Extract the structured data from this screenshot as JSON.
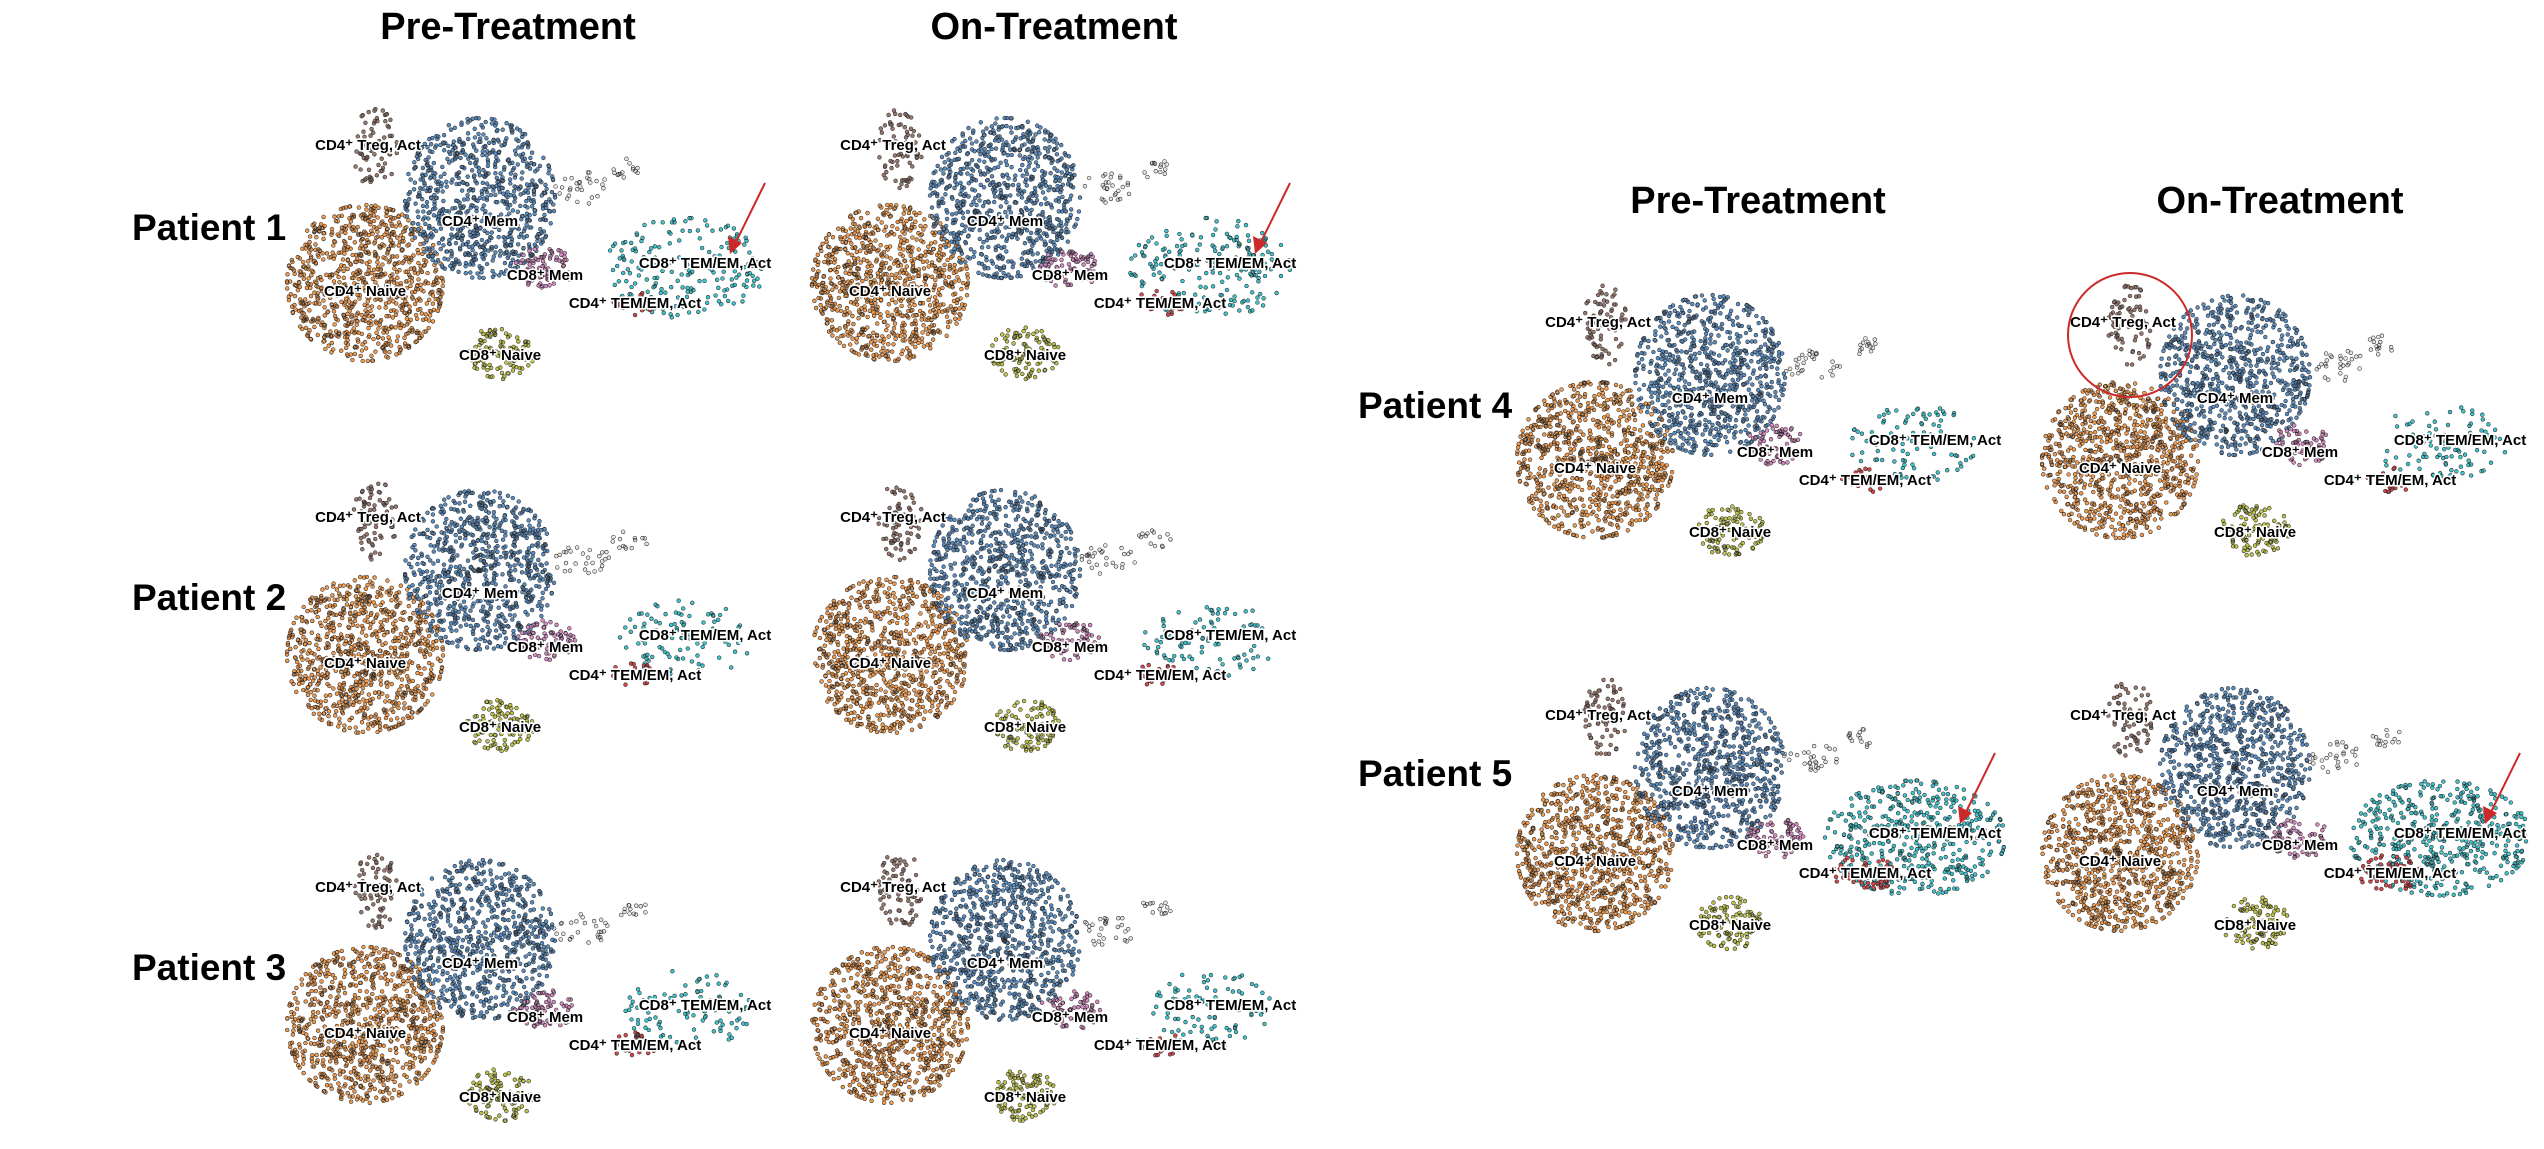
{
  "left_block": {
    "columns": [
      "Pre-Treatment",
      "On-Treatment"
    ],
    "patients": [
      "Patient 1",
      "Patient 2",
      "Patient 3"
    ]
  },
  "right_block": {
    "columns": [
      "Pre-Treatment",
      "On-Treatment"
    ],
    "patients": [
      "Patient 4",
      "Patient 5"
    ]
  },
  "cluster_labels": {
    "cd4_treg_act": "CD4⁺ Treg, Act",
    "cd4_mem": "CD4⁺ Mem",
    "cd4_naive": "CD4⁺ Naive",
    "cd8_mem": "CD8⁺ Mem",
    "cd8_naive": "CD8⁺ Naive",
    "cd8_temem_act": "CD8⁺ TEM/EM, Act",
    "cd4_temem_act": "CD4⁺ TEM/EM, Act"
  },
  "colors": {
    "cd4_naive": "#f39c4e",
    "cd4_mem": "#5b8fc4",
    "cd4_treg_act": "#9a7a6e",
    "cd8_mem": "#d98cc4",
    "cd8_naive": "#bfc24a",
    "cd8_temem_act": "#3ec6cf",
    "cd4_temem_act": "#d9474a",
    "other": "#e6e6e6",
    "annotation": "#cc2a2a"
  },
  "chart_data": {
    "type": "scatter",
    "description_of_plot": "UMAP embeddings of T-cell clusters per patient, pre- and on-treatment",
    "panels": [
      {
        "patient": "Patient 1",
        "timepoint": "Pre-Treatment",
        "cd8_temem_act_abundance": "medium",
        "cd4_temem_act_abundance": "low",
        "annotation": "arrow"
      },
      {
        "patient": "Patient 1",
        "timepoint": "On-Treatment",
        "cd8_temem_act_abundance": "medium",
        "cd4_temem_act_abundance": "low",
        "annotation": "arrow"
      },
      {
        "patient": "Patient 2",
        "timepoint": "Pre-Treatment",
        "cd8_temem_act_abundance": "low",
        "cd4_temem_act_abundance": "low",
        "annotation": "none"
      },
      {
        "patient": "Patient 2",
        "timepoint": "On-Treatment",
        "cd8_temem_act_abundance": "low",
        "cd4_temem_act_abundance": "low",
        "annotation": "none"
      },
      {
        "patient": "Patient 3",
        "timepoint": "Pre-Treatment",
        "cd8_temem_act_abundance": "low",
        "cd4_temem_act_abundance": "low",
        "annotation": "none"
      },
      {
        "patient": "Patient 3",
        "timepoint": "On-Treatment",
        "cd8_temem_act_abundance": "low",
        "cd4_temem_act_abundance": "low",
        "annotation": "none"
      },
      {
        "patient": "Patient 4",
        "timepoint": "Pre-Treatment",
        "cd8_temem_act_abundance": "low",
        "cd4_temem_act_abundance": "low",
        "annotation": "none"
      },
      {
        "patient": "Patient 4",
        "timepoint": "On-Treatment",
        "cd8_temem_act_abundance": "low",
        "cd4_temem_act_abundance": "low",
        "annotation": "circle"
      },
      {
        "patient": "Patient 5",
        "timepoint": "Pre-Treatment",
        "cd8_temem_act_abundance": "high",
        "cd4_temem_act_abundance": "medium",
        "annotation": "arrow"
      },
      {
        "patient": "Patient 5",
        "timepoint": "On-Treatment",
        "cd8_temem_act_abundance": "high",
        "cd4_temem_act_abundance": "medium",
        "annotation": "arrow"
      }
    ]
  }
}
